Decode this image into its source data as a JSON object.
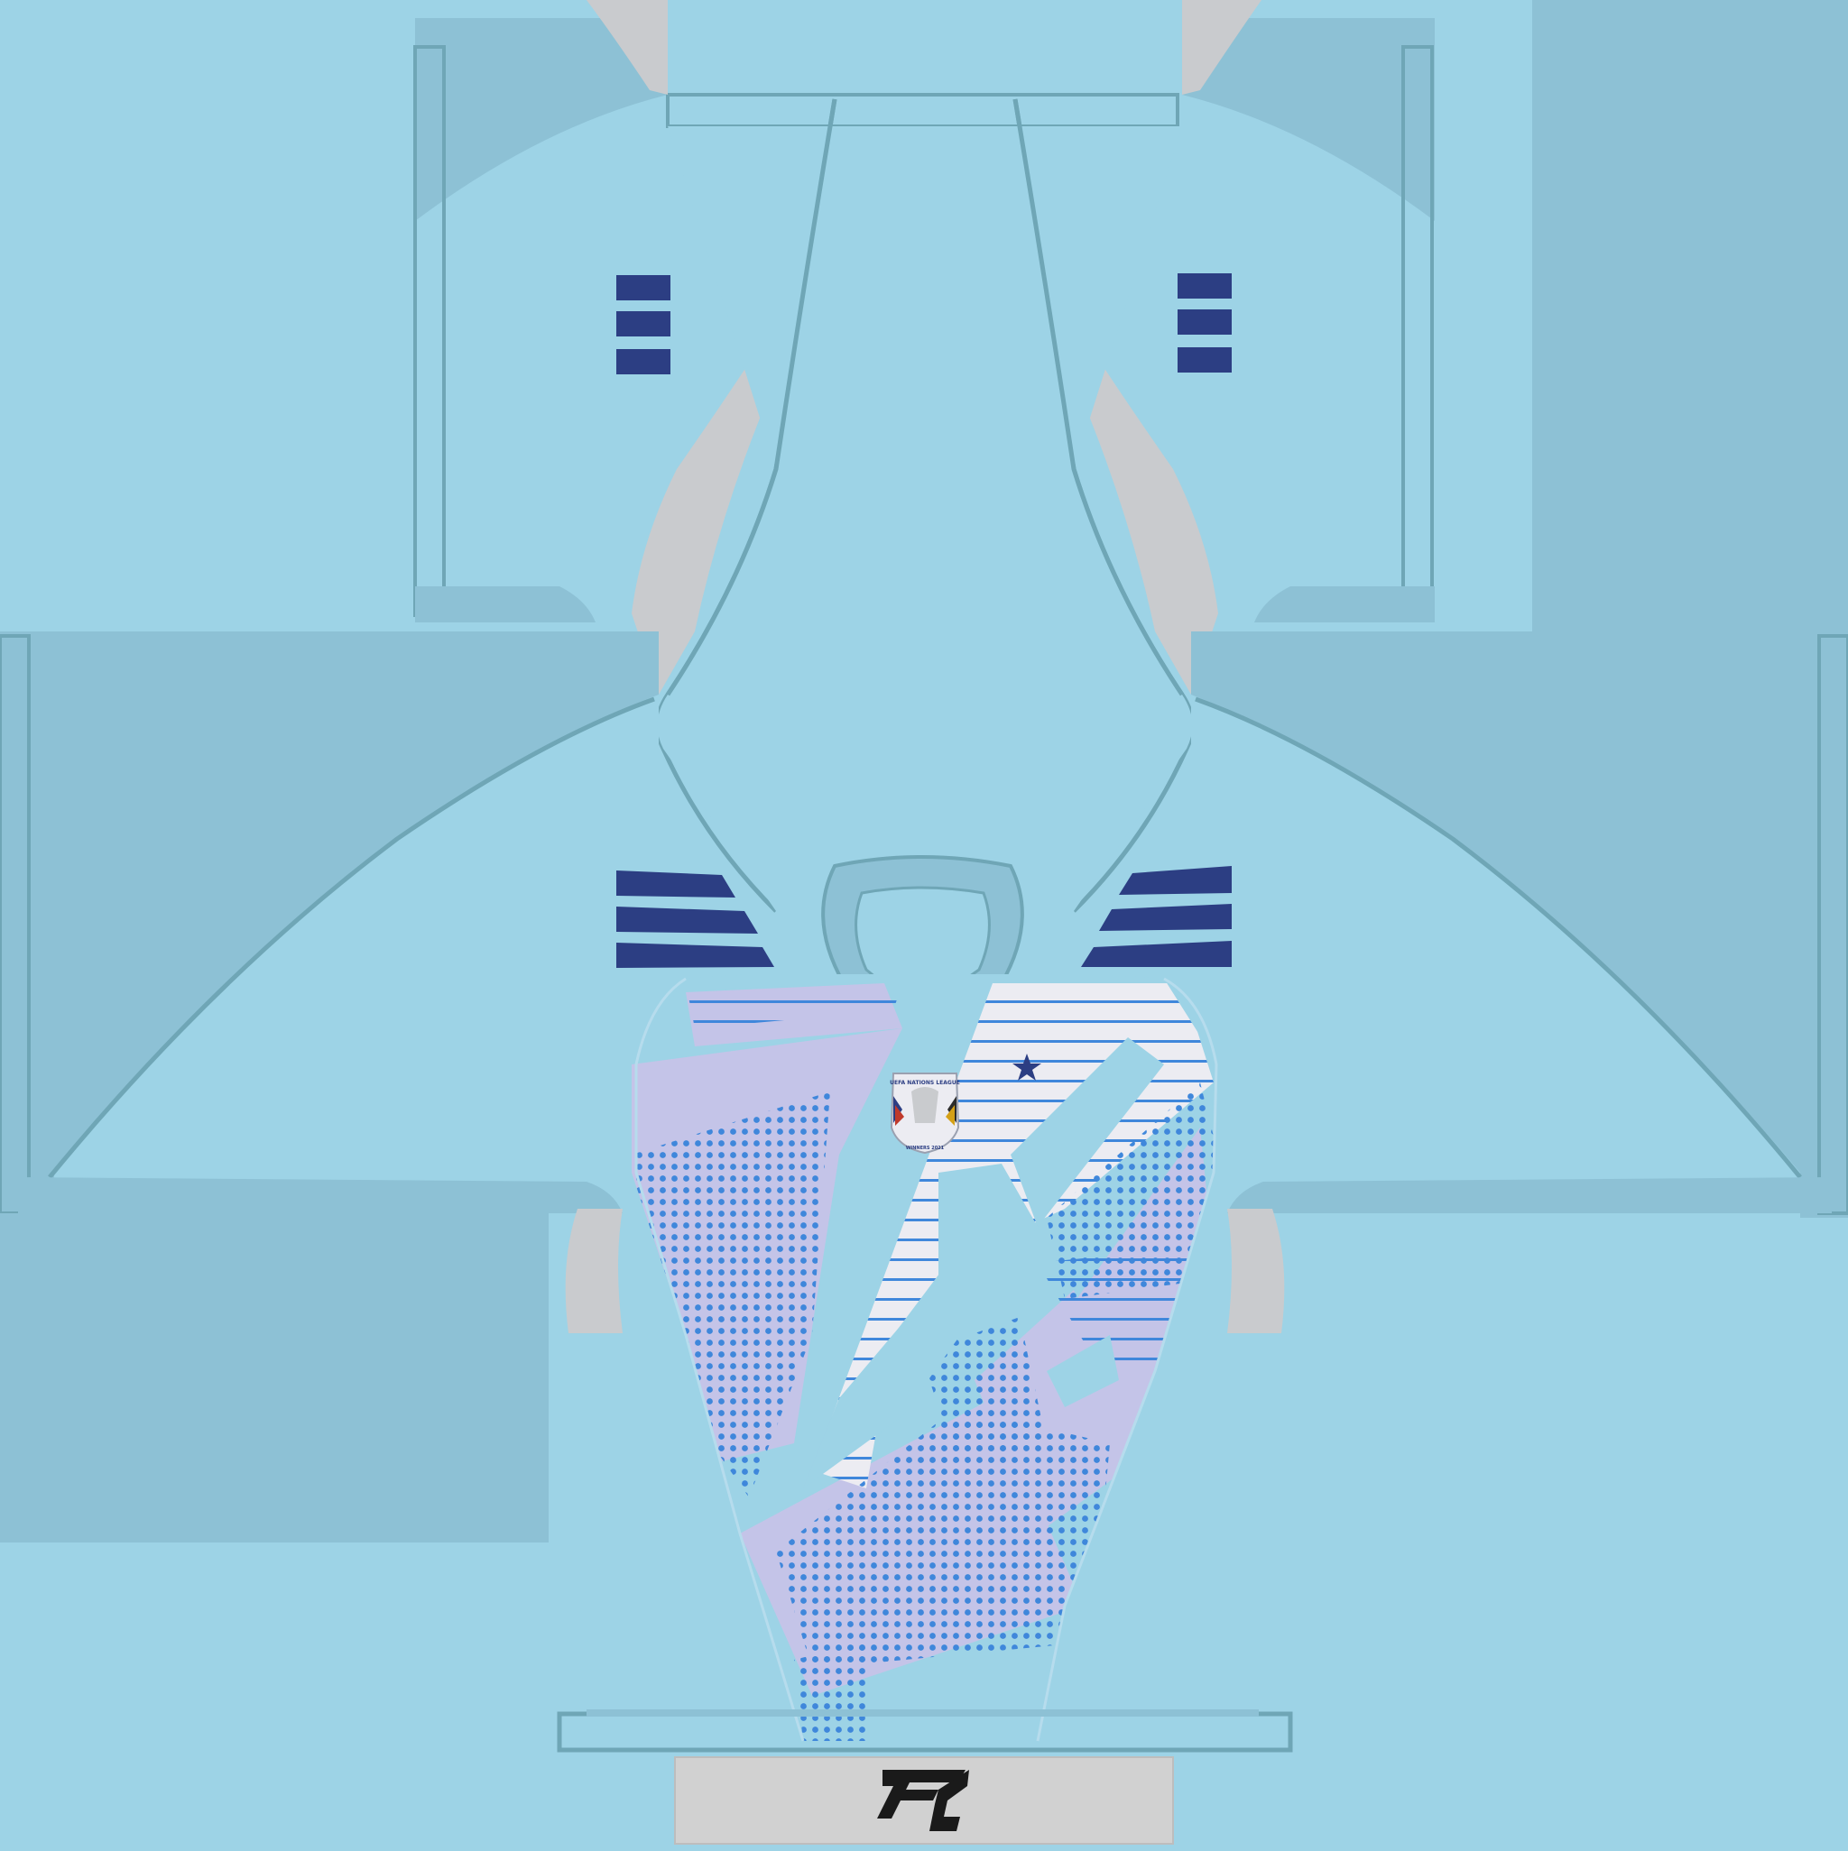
{
  "kit_template": {
    "colors": {
      "base": "#9dd3e6",
      "panel_dark": "#8dc1d5",
      "seam": "#6fa6b6",
      "grey": "#c9cbce",
      "navy": "#2c3e83",
      "lavender": "#c4c4e8",
      "white_panel": "#ececf2",
      "dot_blue": "#3f87db",
      "line_blue": "#3f87db"
    },
    "sleeve_stripes": {
      "count": 3
    },
    "badge": {
      "title": "UEFA NATIONS LEAGUE",
      "subtitle": "WINNERS 2021"
    },
    "logo": {
      "name": "fc-logo-icon"
    },
    "chest_star": {
      "name": "star-icon"
    }
  }
}
